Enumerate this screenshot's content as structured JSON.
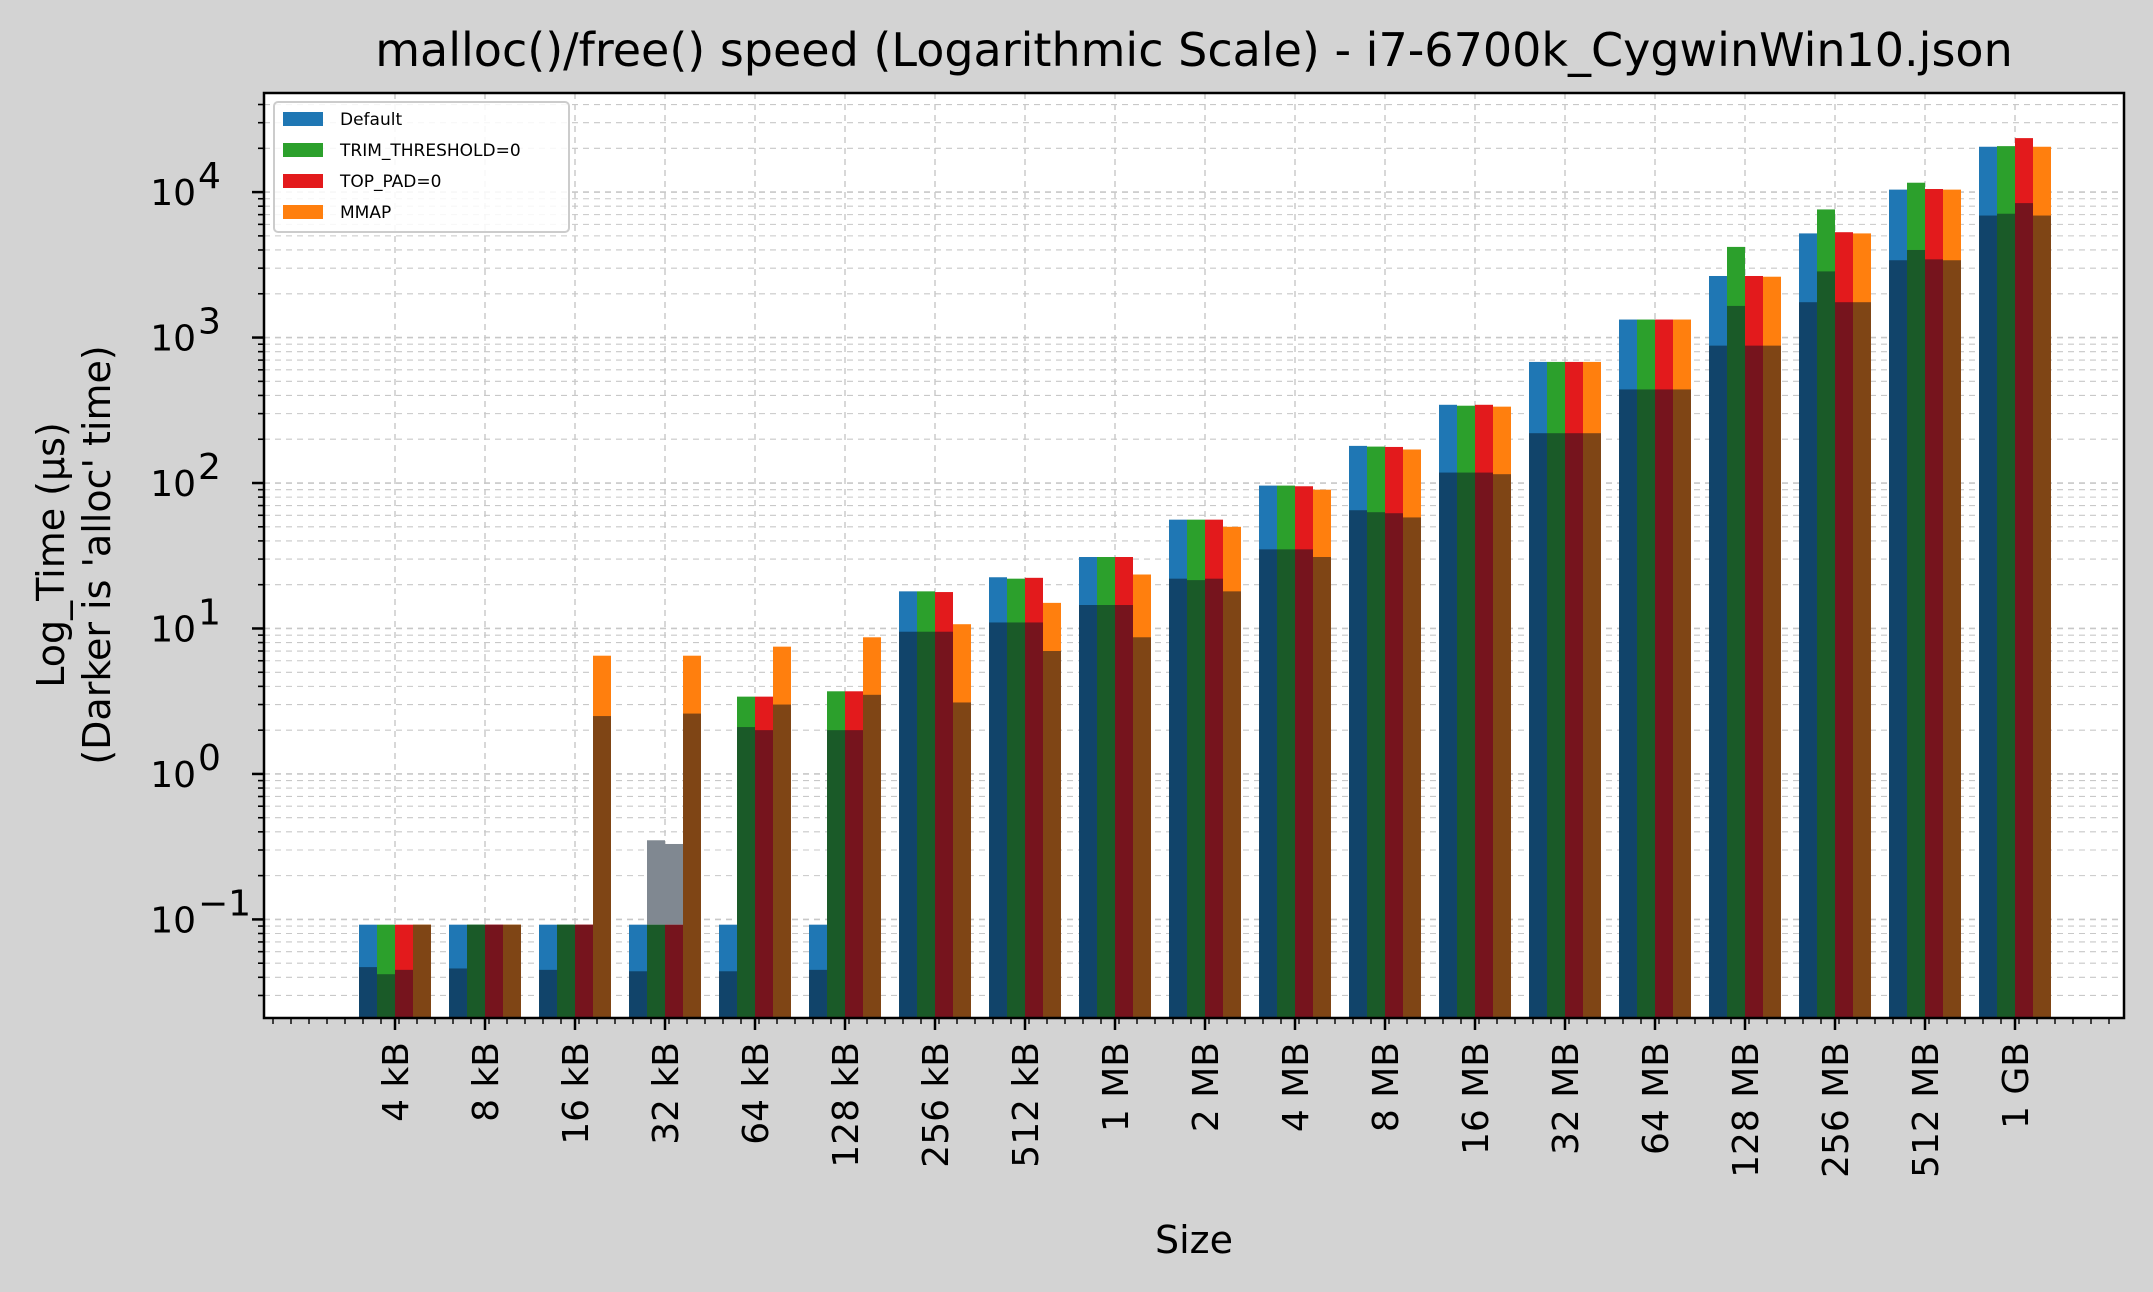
{
  "chart_data": {
    "type": "bar",
    "title": "malloc()/free() speed (Logarithmic Scale) - i7-6700k_CygwinWin10.json",
    "xlabel": "Size",
    "ylabel_line1": "Log_Time (µs)",
    "ylabel_line2": "(Darker is 'alloc' time)",
    "yscale": "log",
    "ylim": [
      0.021,
      48000
    ],
    "grid": true,
    "legend_position": "top-left",
    "categories": [
      "4 kB",
      "8 kB",
      "16 kB",
      "32 kB",
      "64 kB",
      "128 kB",
      "256 kB",
      "512 kB",
      "1 MB",
      "2 MB",
      "4 MB",
      "8 MB",
      "16 MB",
      "32 MB",
      "64 MB",
      "128 MB",
      "256 MB",
      "512 MB",
      "1 GB"
    ],
    "y_tick_labels": [
      "10",
      "10",
      "10",
      "10",
      "10",
      "10"
    ],
    "y_tick_exponents": [
      "−1",
      "0",
      "1",
      "2",
      "3",
      "4"
    ],
    "y_tick_values": [
      0.1,
      1,
      10,
      100,
      1000,
      10000
    ],
    "series": [
      {
        "name": "Default",
        "color": "#1f77b4",
        "dark_color": "#11446a",
        "total": [
          0.092,
          0.092,
          0.092,
          0.092,
          0.092,
          0.092,
          18,
          22.5,
          31,
          56,
          96,
          180,
          345,
          680,
          1330,
          2650,
          5200,
          10400,
          20500
        ],
        "alloc": [
          0.047,
          0.046,
          0.045,
          0.044,
          0.044,
          0.045,
          9.5,
          11,
          14.5,
          22,
          35,
          65,
          118,
          220,
          440,
          880,
          1750,
          3400,
          6900
        ]
      },
      {
        "name": "TRIM_THRESHOLD=0",
        "color": "#2ca02c",
        "dark_color": "#1a5a28",
        "total": [
          0.092,
          0.092,
          0.092,
          0.092,
          3.4,
          3.7,
          18,
          22,
          31,
          56,
          96,
          178,
          340,
          680,
          1330,
          4200,
          7600,
          11600,
          20700
        ],
        "alloc": [
          0.042,
          0.092,
          0.092,
          0.092,
          2.1,
          2.0,
          9.5,
          11,
          14.5,
          21.5,
          35,
          63,
          118,
          220,
          440,
          1650,
          2850,
          4000,
          7100
        ]
      },
      {
        "name": "TOP_PAD=0",
        "color": "#e31a1c",
        "dark_color": "#76141d",
        "total": [
          0.092,
          0.092,
          0.092,
          0.092,
          3.4,
          3.7,
          17.8,
          22.3,
          31,
          56,
          95,
          177,
          345,
          680,
          1330,
          2650,
          5300,
          10500,
          23500
        ],
        "alloc": [
          0.045,
          0.092,
          0.092,
          0.092,
          2.0,
          2.0,
          9.5,
          11,
          14.5,
          22,
          35,
          62,
          118,
          220,
          440,
          880,
          1750,
          3450,
          8400
        ]
      },
      {
        "name": "MMAP",
        "color": "#ff7f0e",
        "dark_color": "#7f4515",
        "total": [
          0.092,
          0.092,
          6.5,
          6.5,
          7.5,
          8.7,
          10.7,
          15,
          23.5,
          50,
          90,
          170,
          335,
          680,
          1330,
          2620,
          5200,
          10400,
          20500
        ],
        "alloc": [
          0.092,
          0.092,
          2.5,
          2.6,
          3.0,
          3.5,
          3.1,
          7.0,
          8.7,
          18,
          31,
          58,
          115,
          220,
          440,
          880,
          1750,
          3400,
          6900
        ]
      }
    ],
    "grey_bar": {
      "category": "32 kB",
      "color": "#808891",
      "values": [
        0.35,
        0.33
      ]
    }
  }
}
